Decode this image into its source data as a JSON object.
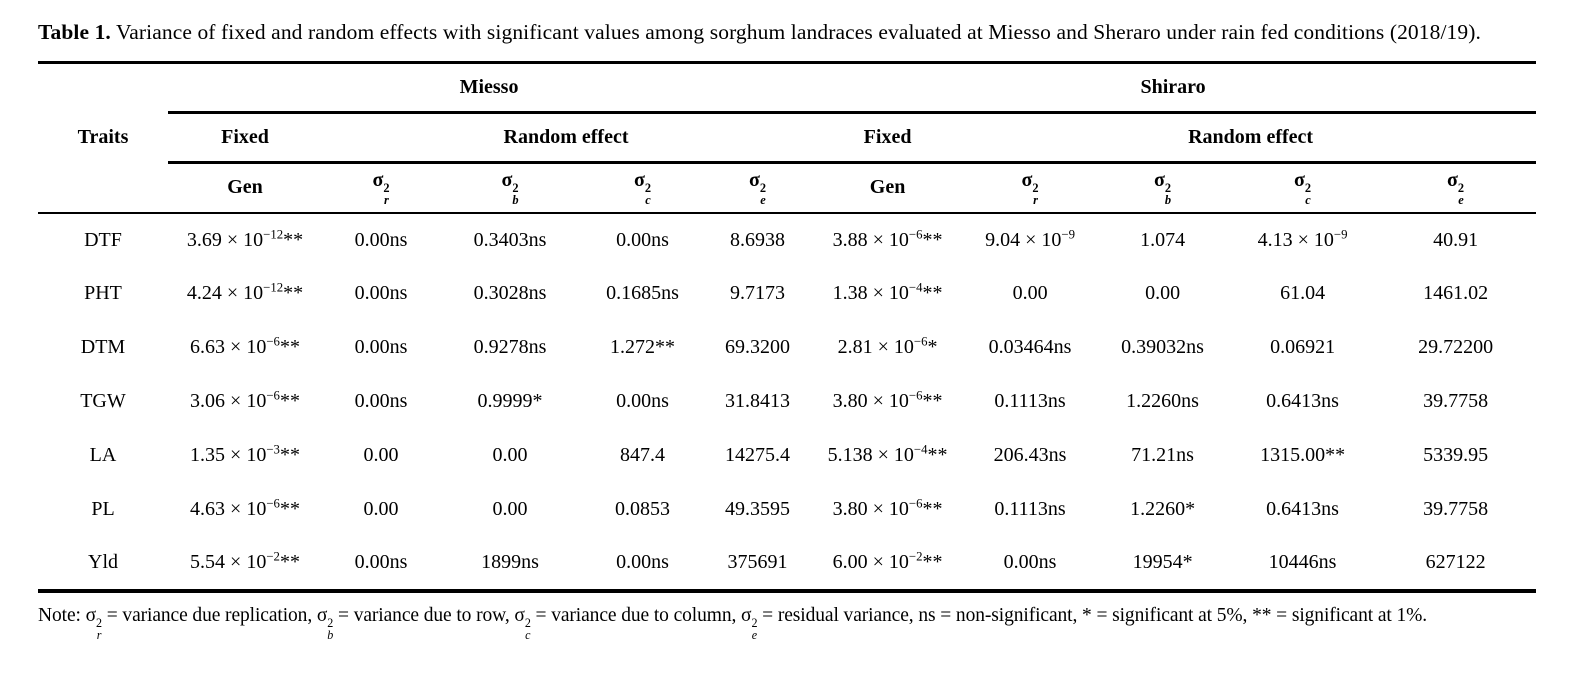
{
  "title": {
    "label": "Table 1.",
    "text": " Variance of fixed and random effects with significant values among sorghum landraces evaluated at Miesso and Sheraro under rain fed conditions (2018/19)."
  },
  "table": {
    "traits_header": "Traits",
    "groups": [
      {
        "name": "Miesso",
        "fixed": "Fixed",
        "random": "Random effect"
      },
      {
        "name": "Shiraro",
        "fixed": "Fixed",
        "random": "Random effect"
      }
    ],
    "subheaders": [
      "Gen",
      "σ_{r}^{2}",
      "σ_{b}^{2}",
      "σ_{c}^{2}",
      "σ_{e}^{2}"
    ],
    "rows": [
      {
        "trait": "DTF",
        "miesso": [
          "3.69 × 10^{−12}**",
          "0.00ns",
          "0.3403ns",
          "0.00ns",
          "8.6938"
        ],
        "shiraro": [
          "3.88 × 10^{−6}**",
          "9.04 × 10^{−9}",
          "1.074",
          "4.13 × 10^{−9}",
          "40.91"
        ]
      },
      {
        "trait": "PHT",
        "miesso": [
          "4.24 × 10^{−12}**",
          "0.00ns",
          "0.3028ns",
          "0.1685ns",
          "9.7173"
        ],
        "shiraro": [
          "1.38 × 10^{−4}**",
          "0.00",
          "0.00",
          "61.04",
          "1461.02"
        ]
      },
      {
        "trait": "DTM",
        "miesso": [
          "6.63 × 10^{−6}**",
          "0.00ns",
          "0.9278ns",
          "1.272**",
          "69.3200"
        ],
        "shiraro": [
          "2.81 × 10^{−6}*",
          "0.03464ns",
          "0.39032ns",
          "0.06921",
          "29.72200"
        ]
      },
      {
        "trait": "TGW",
        "miesso": [
          "3.06 × 10^{−6}**",
          "0.00ns",
          "0.9999*",
          "0.00ns",
          "31.8413"
        ],
        "shiraro": [
          "3.80 × 10^{−6}**",
          "0.1113ns",
          "1.2260ns",
          "0.6413ns",
          "39.7758"
        ]
      },
      {
        "trait": "LA",
        "miesso": [
          "1.35 × 10^{−3}**",
          "0.00",
          "0.00",
          "847.4",
          "14275.4"
        ],
        "shiraro": [
          "5.138 × 10^{−4}**",
          "206.43ns",
          "71.21ns",
          "1315.00**",
          "5339.95"
        ]
      },
      {
        "trait": "PL",
        "miesso": [
          "4.63 × 10^{−6}**",
          "0.00",
          "0.00",
          "0.0853",
          "49.3595"
        ],
        "shiraro": [
          "3.80 × 10^{−6}**",
          "0.1113ns",
          "1.2260*",
          "0.6413ns",
          "39.7758"
        ]
      },
      {
        "trait": "Yld",
        "miesso": [
          "5.54 × 10^{−2}**",
          "0.00ns",
          "1899ns",
          "0.00ns",
          "375691"
        ],
        "shiraro": [
          "6.00 × 10^{−2}**",
          "0.00ns",
          "19954*",
          "10446ns",
          "627122"
        ]
      }
    ]
  },
  "note": "Note: σ_{r}^{2} = variance due replication, σ_{b}^{2} = variance due to row, σ_{c}^{2} = variance due to column, σ_{e}^{2} = residual variance, ns = non-significant, * = significant at 5%, ** = significant at 1%."
}
